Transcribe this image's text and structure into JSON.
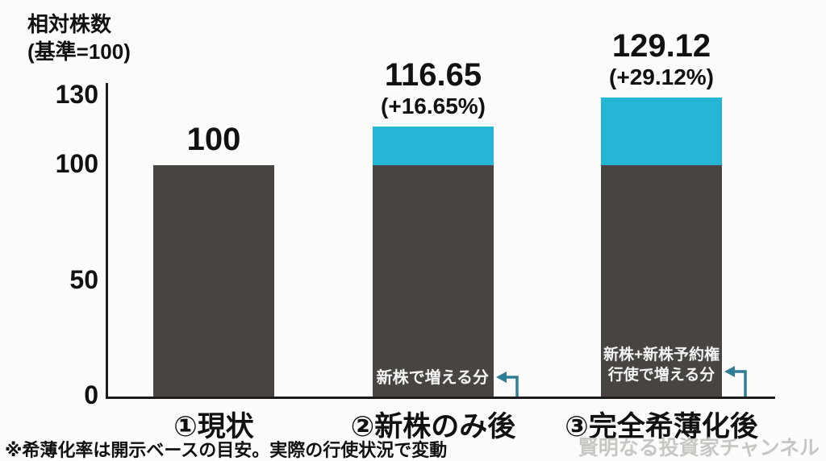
{
  "background": "#fcfcfa",
  "colors": {
    "base_bar": "#474441",
    "dilution_bar": "#25b6d6",
    "axis": "#1c1c1c",
    "text": "#111111",
    "annotation_text": "#f5f5f3",
    "arrow": "#2f7e96",
    "watermark": "#c9c7c3"
  },
  "axis_title": {
    "line1": "相対株数",
    "line2": "(基準=100)"
  },
  "chart_data": {
    "type": "bar",
    "stacked": true,
    "title": "相対株数(基準=100)",
    "categories": [
      "①現状",
      "②新株のみ後",
      "③完全希薄化後"
    ],
    "series": [
      {
        "id": "base",
        "values": [
          100,
          100,
          100
        ]
      },
      {
        "id": "dilution_increase",
        "values": [
          0,
          16.65,
          29.12
        ]
      }
    ],
    "totals": [
      100,
      116.65,
      129.12
    ],
    "total_labels": [
      "100",
      "116.65",
      "129.12"
    ],
    "delta_labels": [
      "",
      "(+16.65%)",
      "(+29.12%)"
    ],
    "yticks": [
      130,
      100,
      50,
      0
    ],
    "ylim": [
      0,
      130
    ],
    "grid": false,
    "legend": false
  },
  "annotations": [
    {
      "bar_index": 1,
      "lines": [
        "新株で増える分"
      ]
    },
    {
      "bar_index": 2,
      "lines": [
        "新株+新株予約権",
        "行使で増える分"
      ]
    }
  ],
  "footnote": "※希薄化率は開示ベースの目安。実際の行使状況で変動",
  "watermark": "賢明なる投資家チャンネル"
}
